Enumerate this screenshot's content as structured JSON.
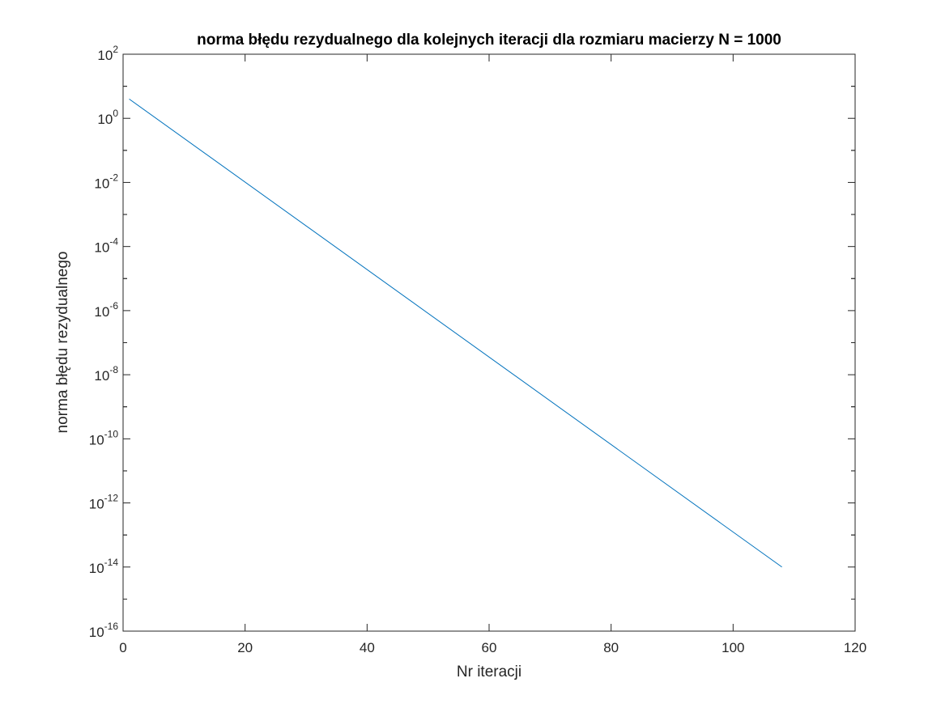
{
  "chart_data": {
    "type": "line",
    "title": "norma błędu rezydualnego dla kolejnych iteracji dla rozmiaru macierzy N = 1000",
    "xlabel": "Nr iteracji",
    "ylabel": "norma błędu rezydualnego",
    "xlim": [
      0,
      120
    ],
    "ylim": [
      1e-16,
      100
    ],
    "yscale": "log",
    "grid": false,
    "xticks": [
      0,
      20,
      40,
      60,
      80,
      100,
      120
    ],
    "xtick_labels": [
      "0",
      "20",
      "40",
      "60",
      "80",
      "100",
      "120"
    ],
    "yticks": [
      1e-16,
      1e-14,
      1e-12,
      1e-10,
      1e-08,
      1e-06,
      0.0001,
      0.01,
      1,
      100
    ],
    "ytick_labels": [
      {
        "base": "10",
        "exp": "-16"
      },
      {
        "base": "10",
        "exp": "-14"
      },
      {
        "base": "10",
        "exp": "-12"
      },
      {
        "base": "10",
        "exp": "-10"
      },
      {
        "base": "10",
        "exp": "-8"
      },
      {
        "base": "10",
        "exp": "-6"
      },
      {
        "base": "10",
        "exp": "-4"
      },
      {
        "base": "10",
        "exp": "-2"
      },
      {
        "base": "10",
        "exp": "0"
      },
      {
        "base": "10",
        "exp": "2"
      }
    ],
    "series": [
      {
        "color": "#0072BD",
        "x": [
          1,
          108
        ],
        "y": [
          4.0,
          1e-14
        ]
      }
    ]
  }
}
